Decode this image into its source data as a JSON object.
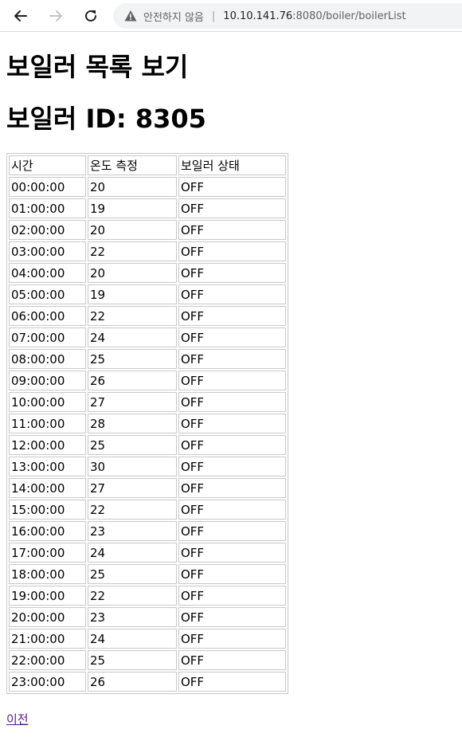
{
  "browser": {
    "security_label": "안전하지 않음",
    "url_host": "10.10.141.76",
    "url_rest": ":8080/boiler/boilerList",
    "icons": {
      "back": "arrow-left-icon",
      "forward": "arrow-right-icon",
      "reload": "reload-icon",
      "warning": "warning-triangle-icon"
    }
  },
  "page": {
    "title": "보일러 목록 보기",
    "boiler_heading": "보일러 ID: 8305",
    "table": {
      "headers": [
        "시간",
        "온도 측정",
        "보일러 상태"
      ],
      "rows": [
        [
          "00:00:00",
          "20",
          "OFF"
        ],
        [
          "01:00:00",
          "19",
          "OFF"
        ],
        [
          "02:00:00",
          "20",
          "OFF"
        ],
        [
          "03:00:00",
          "22",
          "OFF"
        ],
        [
          "04:00:00",
          "20",
          "OFF"
        ],
        [
          "05:00:00",
          "19",
          "OFF"
        ],
        [
          "06:00:00",
          "22",
          "OFF"
        ],
        [
          "07:00:00",
          "24",
          "OFF"
        ],
        [
          "08:00:00",
          "25",
          "OFF"
        ],
        [
          "09:00:00",
          "26",
          "OFF"
        ],
        [
          "10:00:00",
          "27",
          "OFF"
        ],
        [
          "11:00:00",
          "28",
          "OFF"
        ],
        [
          "12:00:00",
          "25",
          "OFF"
        ],
        [
          "13:00:00",
          "30",
          "OFF"
        ],
        [
          "14:00:00",
          "27",
          "OFF"
        ],
        [
          "15:00:00",
          "22",
          "OFF"
        ],
        [
          "16:00:00",
          "23",
          "OFF"
        ],
        [
          "17:00:00",
          "24",
          "OFF"
        ],
        [
          "18:00:00",
          "25",
          "OFF"
        ],
        [
          "19:00:00",
          "22",
          "OFF"
        ],
        [
          "20:00:00",
          "23",
          "OFF"
        ],
        [
          "21:00:00",
          "24",
          "OFF"
        ],
        [
          "22:00:00",
          "25",
          "OFF"
        ],
        [
          "23:00:00",
          "26",
          "OFF"
        ]
      ]
    },
    "prev_link": "이전"
  },
  "colors": {
    "link_visited": "#551a8b",
    "table_border": "#c8c8c8"
  }
}
